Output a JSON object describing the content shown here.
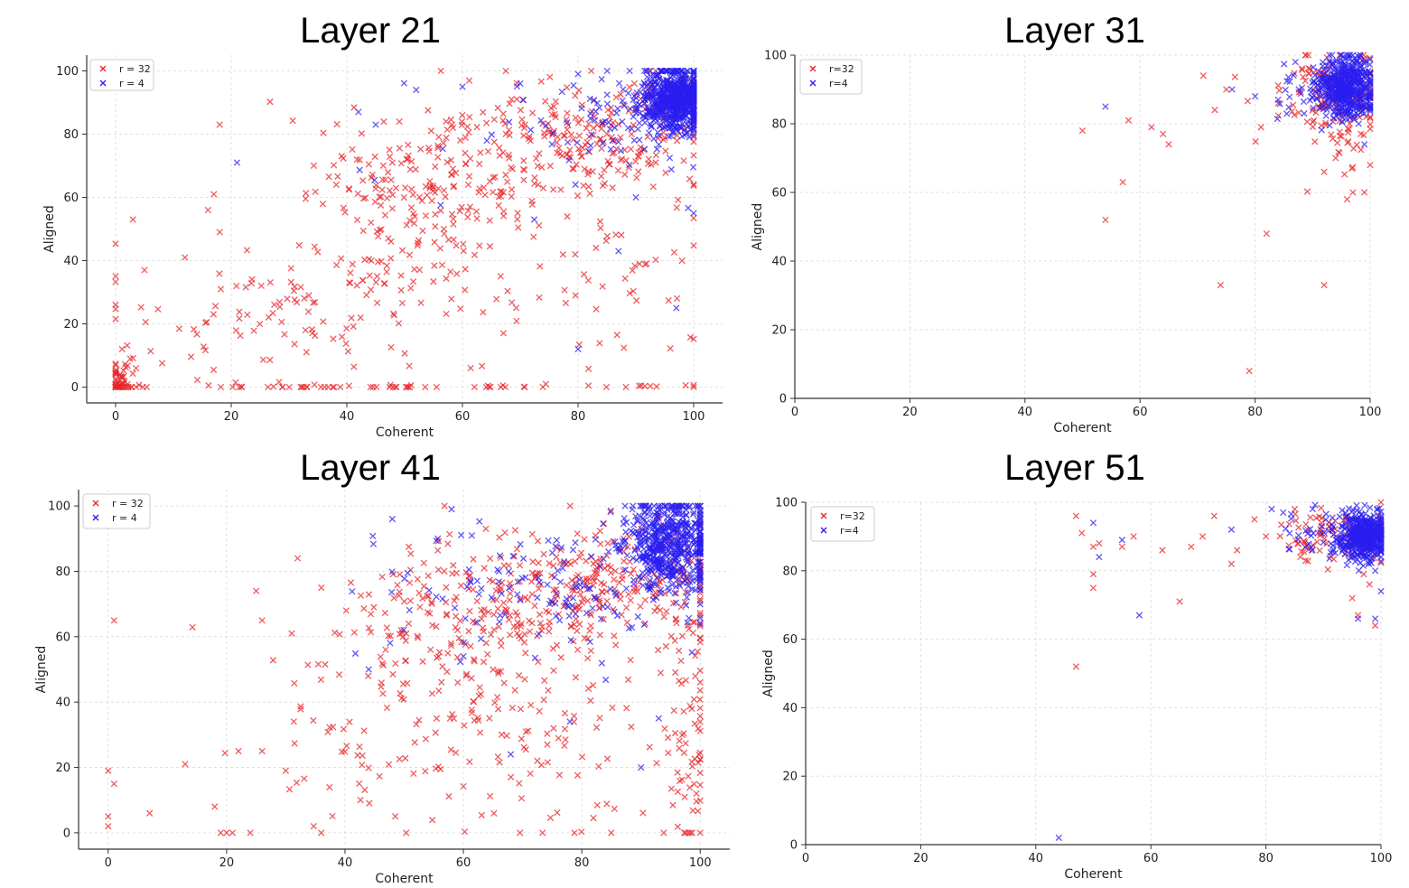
{
  "colors": {
    "r32": "#e8262a",
    "r4": "#2a1ef0",
    "grid": "#d9d9d9",
    "axis": "#333333"
  },
  "chart_data": [
    {
      "type": "scatter",
      "title": "Layer 21",
      "xlabel": "Coherent",
      "ylabel": "Aligned",
      "xlim": [
        -5,
        105
      ],
      "ylim": [
        -5,
        105
      ],
      "xticks": [
        "0",
        "20",
        "40",
        "60",
        "80",
        "100"
      ],
      "yticks": [
        "0",
        "20",
        "40",
        "60",
        "80",
        "100"
      ],
      "grid": true,
      "legend_position": "top-left",
      "series": [
        {
          "name": "r = 32",
          "color": "#e8262a",
          "seed": 21,
          "clusters": [
            {
              "n": 220,
              "cx": 80,
              "cy": 78,
              "sx": 12,
              "sy": 10
            },
            {
              "n": 160,
              "cx": 55,
              "cy": 65,
              "sx": 10,
              "sy": 12
            },
            {
              "n": 80,
              "cx": 45,
              "cy": 40,
              "sx": 8,
              "sy": 18
            },
            {
              "n": 80,
              "cx": 25,
              "cy": 20,
              "sx": 14,
              "sy": 10
            },
            {
              "n": 60,
              "cx": 1,
              "cy": 2,
              "sx": 1.2,
              "sy": 4
            },
            {
              "n": 60,
              "cx": 40,
              "cy": 0,
              "sx": 30,
              "sy": 0.5
            },
            {
              "n": 70,
              "cx": 80,
              "cy": 35,
              "sx": 14,
              "sy": 20
            },
            {
              "n": 40,
              "cx": 95,
              "cy": 92,
              "sx": 4,
              "sy": 5
            }
          ],
          "points": [
            [
              18,
              83
            ],
            [
              3,
              53
            ],
            [
              16,
              56
            ],
            [
              17,
              61
            ],
            [
              18,
              49
            ],
            [
              5,
              37
            ],
            [
              12,
              41
            ]
          ]
        },
        {
          "name": "r = 4",
          "color": "#2a1ef0",
          "seed": 4,
          "clusters": [
            {
              "n": 700,
              "cx": 97,
              "cy": 91,
              "sx": 3,
              "sy": 5
            },
            {
              "n": 60,
              "cx": 87,
              "cy": 84,
              "sx": 6,
              "sy": 8
            },
            {
              "n": 25,
              "cx": 75,
              "cy": 80,
              "sx": 15,
              "sy": 12
            }
          ],
          "points": [
            [
              21,
              71
            ],
            [
              42,
              87
            ],
            [
              45,
              83
            ],
            [
              52,
              94
            ],
            [
              60,
              95
            ],
            [
              70,
              96
            ],
            [
              80,
              99
            ],
            [
              87,
              43
            ],
            [
              80,
              12
            ],
            [
              90,
              60
            ],
            [
              100,
              55
            ],
            [
              97,
              25
            ]
          ]
        }
      ]
    },
    {
      "type": "scatter",
      "title": "Layer 31",
      "xlabel": "Coherent",
      "ylabel": "Aligned",
      "xlim": [
        0,
        100
      ],
      "ylim": [
        0,
        100
      ],
      "xticks": [
        "0",
        "20",
        "40",
        "60",
        "80",
        "100"
      ],
      "yticks": [
        "0",
        "20",
        "40",
        "60",
        "80",
        "100"
      ],
      "grid": true,
      "legend_position": "top-left",
      "series": [
        {
          "name": "r=32",
          "color": "#e8262a",
          "seed": 31,
          "clusters": [
            {
              "n": 120,
              "cx": 93,
              "cy": 89,
              "sx": 5,
              "sy": 6
            },
            {
              "n": 40,
              "cx": 97,
              "cy": 78,
              "sx": 3,
              "sy": 9
            }
          ],
          "points": [
            [
              50,
              78
            ],
            [
              54,
              52
            ],
            [
              57,
              63
            ],
            [
              58,
              81
            ],
            [
              62,
              79
            ],
            [
              64,
              77
            ],
            [
              65,
              74
            ],
            [
              71,
              94
            ],
            [
              73,
              84
            ],
            [
              74,
              33
            ],
            [
              75,
              90
            ],
            [
              79,
              8
            ],
            [
              82,
              48
            ],
            [
              92,
              33
            ],
            [
              92,
              66
            ],
            [
              96,
              58
            ],
            [
              99,
              60
            ],
            [
              100,
              68
            ],
            [
              97,
              60
            ],
            [
              94,
              70
            ]
          ]
        },
        {
          "name": "r=4",
          "color": "#2a1ef0",
          "seed": 40,
          "clusters": [
            {
              "n": 500,
              "cx": 96,
              "cy": 91,
              "sx": 2.5,
              "sy": 4.5
            },
            {
              "n": 40,
              "cx": 90,
              "cy": 88,
              "sx": 4,
              "sy": 5
            }
          ],
          "points": [
            [
              54,
              85
            ],
            [
              76,
              90
            ],
            [
              80,
              88
            ],
            [
              84,
              87
            ],
            [
              87,
              98
            ],
            [
              99,
              74
            ],
            [
              98,
              80
            ]
          ]
        }
      ]
    },
    {
      "type": "scatter",
      "title": "Layer 41",
      "xlabel": "Coherent",
      "ylabel": "Aligned",
      "xlim": [
        -5,
        105
      ],
      "ylim": [
        -5,
        105
      ],
      "xticks": [
        "0",
        "20",
        "40",
        "60",
        "80",
        "100"
      ],
      "yticks": [
        "0",
        "20",
        "40",
        "60",
        "80",
        "100"
      ],
      "grid": true,
      "legend_position": "top-left",
      "series": [
        {
          "name": "r = 32",
          "color": "#e8262a",
          "seed": 41,
          "clusters": [
            {
              "n": 260,
              "cx": 85,
              "cy": 78,
              "sx": 11,
              "sy": 10
            },
            {
              "n": 150,
              "cx": 60,
              "cy": 68,
              "sx": 10,
              "sy": 10
            },
            {
              "n": 180,
              "cx": 70,
              "cy": 35,
              "sx": 18,
              "sy": 18
            },
            {
              "n": 60,
              "cx": 98,
              "cy": 25,
              "sx": 2,
              "sy": 20
            },
            {
              "n": 40,
              "cx": 45,
              "cy": 25,
              "sx": 8,
              "sy": 15
            }
          ],
          "points": [
            [
              0,
              5
            ],
            [
              0,
              2
            ],
            [
              0,
              19
            ],
            [
              1,
              15
            ],
            [
              1,
              65
            ],
            [
              7,
              6
            ],
            [
              13,
              21
            ],
            [
              18,
              8
            ],
            [
              19,
              0
            ],
            [
              21,
              0
            ],
            [
              24,
              0
            ],
            [
              25,
              74
            ],
            [
              26,
              65
            ],
            [
              26,
              25
            ],
            [
              22,
              25
            ],
            [
              32,
              84
            ],
            [
              36,
              75
            ],
            [
              36,
              0
            ],
            [
              30,
              19
            ],
            [
              31,
              61
            ],
            [
              20,
              0
            ]
          ]
        },
        {
          "name": "r = 4",
          "color": "#2a1ef0",
          "seed": 44,
          "clusters": [
            {
              "n": 550,
              "cx": 95,
              "cy": 88,
              "sx": 4,
              "sy": 7
            },
            {
              "n": 140,
              "cx": 75,
              "cy": 75,
              "sx": 14,
              "sy": 10
            }
          ],
          "points": [
            [
              48,
              96
            ],
            [
              58,
              99
            ],
            [
              68,
              24
            ],
            [
              90,
              20
            ],
            [
              93,
              35
            ],
            [
              78,
              34
            ],
            [
              44,
              50
            ],
            [
              60,
              54
            ]
          ]
        }
      ]
    },
    {
      "type": "scatter",
      "title": "Layer 51",
      "xlabel": "Coherent",
      "ylabel": "Aligned",
      "xlim": [
        0,
        100
      ],
      "ylim": [
        0,
        100
      ],
      "xticks": [
        "0",
        "20",
        "40",
        "60",
        "80",
        "100"
      ],
      "yticks": [
        "0",
        "20",
        "40",
        "60",
        "80",
        "100"
      ],
      "grid": true,
      "legend_position": "top-left",
      "series": [
        {
          "name": "r=32",
          "color": "#e8262a",
          "seed": 51,
          "clusters": [
            {
              "n": 100,
              "cx": 92,
              "cy": 90,
              "sx": 5,
              "sy": 4
            }
          ],
          "points": [
            [
              47,
              96
            ],
            [
              48,
              91
            ],
            [
              47,
              52
            ],
            [
              50,
              87
            ],
            [
              50,
              79
            ],
            [
              50,
              75
            ],
            [
              51,
              88
            ],
            [
              55,
              87
            ],
            [
              57,
              90
            ],
            [
              62,
              86
            ],
            [
              65,
              71
            ],
            [
              67,
              87
            ],
            [
              69,
              90
            ],
            [
              71,
              96
            ],
            [
              74,
              82
            ],
            [
              75,
              86
            ],
            [
              78,
              95
            ],
            [
              80,
              90
            ],
            [
              85,
              98
            ],
            [
              86,
              84
            ],
            [
              95,
              72
            ],
            [
              96,
              67
            ],
            [
              98,
              76
            ],
            [
              99,
              64
            ],
            [
              97,
              79
            ]
          ]
        },
        {
          "name": "r=4",
          "color": "#2a1ef0",
          "seed": 55,
          "clusters": [
            {
              "n": 450,
              "cx": 97,
              "cy": 90,
              "sx": 2.2,
              "sy": 3.5
            },
            {
              "n": 40,
              "cx": 90,
              "cy": 90,
              "sx": 4,
              "sy": 4
            }
          ],
          "points": [
            [
              44,
              2
            ],
            [
              50,
              94
            ],
            [
              51,
              84
            ],
            [
              55,
              89
            ],
            [
              58,
              67
            ],
            [
              74,
              92
            ],
            [
              81,
              98
            ],
            [
              96,
              66
            ],
            [
              99,
              66
            ],
            [
              100,
              74
            ],
            [
              99,
              80
            ],
            [
              83,
              97
            ]
          ]
        }
      ]
    }
  ]
}
